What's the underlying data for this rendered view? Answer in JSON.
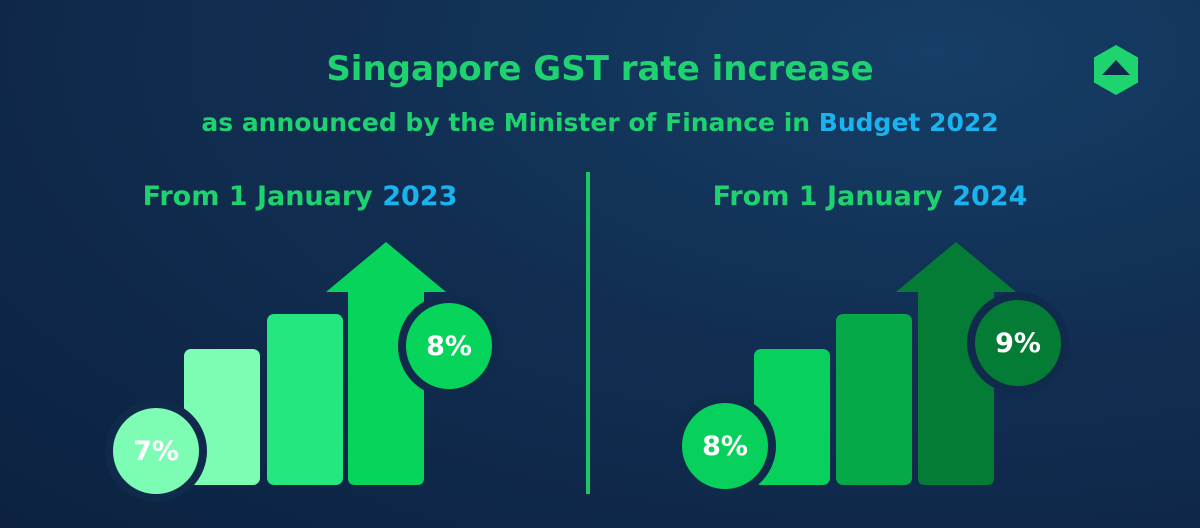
{
  "header": {
    "title": "Singapore GST rate increase",
    "subtitle_main": "as announced by the Minister of Finance in",
    "subtitle_accent": "Budget 2022"
  },
  "panels": [
    {
      "label_main": "From 1 January",
      "label_year": "2023",
      "from_rate": "7%",
      "to_rate": "8%",
      "colors": {
        "bar1": "#7dfcb3",
        "bar2": "#25e77f",
        "bar3": "#07d45b",
        "from_badge": "#7dfcb3",
        "to_badge": "#07d45b"
      }
    },
    {
      "label_main": "From 1 January",
      "label_year": "2024",
      "from_rate": "8%",
      "to_rate": "9%",
      "colors": {
        "bar1": "#07d15c",
        "bar2": "#06a948",
        "bar3": "#047c36",
        "from_badge": "#07d15c",
        "to_badge": "#047c36"
      }
    }
  ],
  "colors": {
    "title_green": "#1fd270",
    "accent_blue": "#1ab3f0",
    "background": "#0f2a4a"
  }
}
